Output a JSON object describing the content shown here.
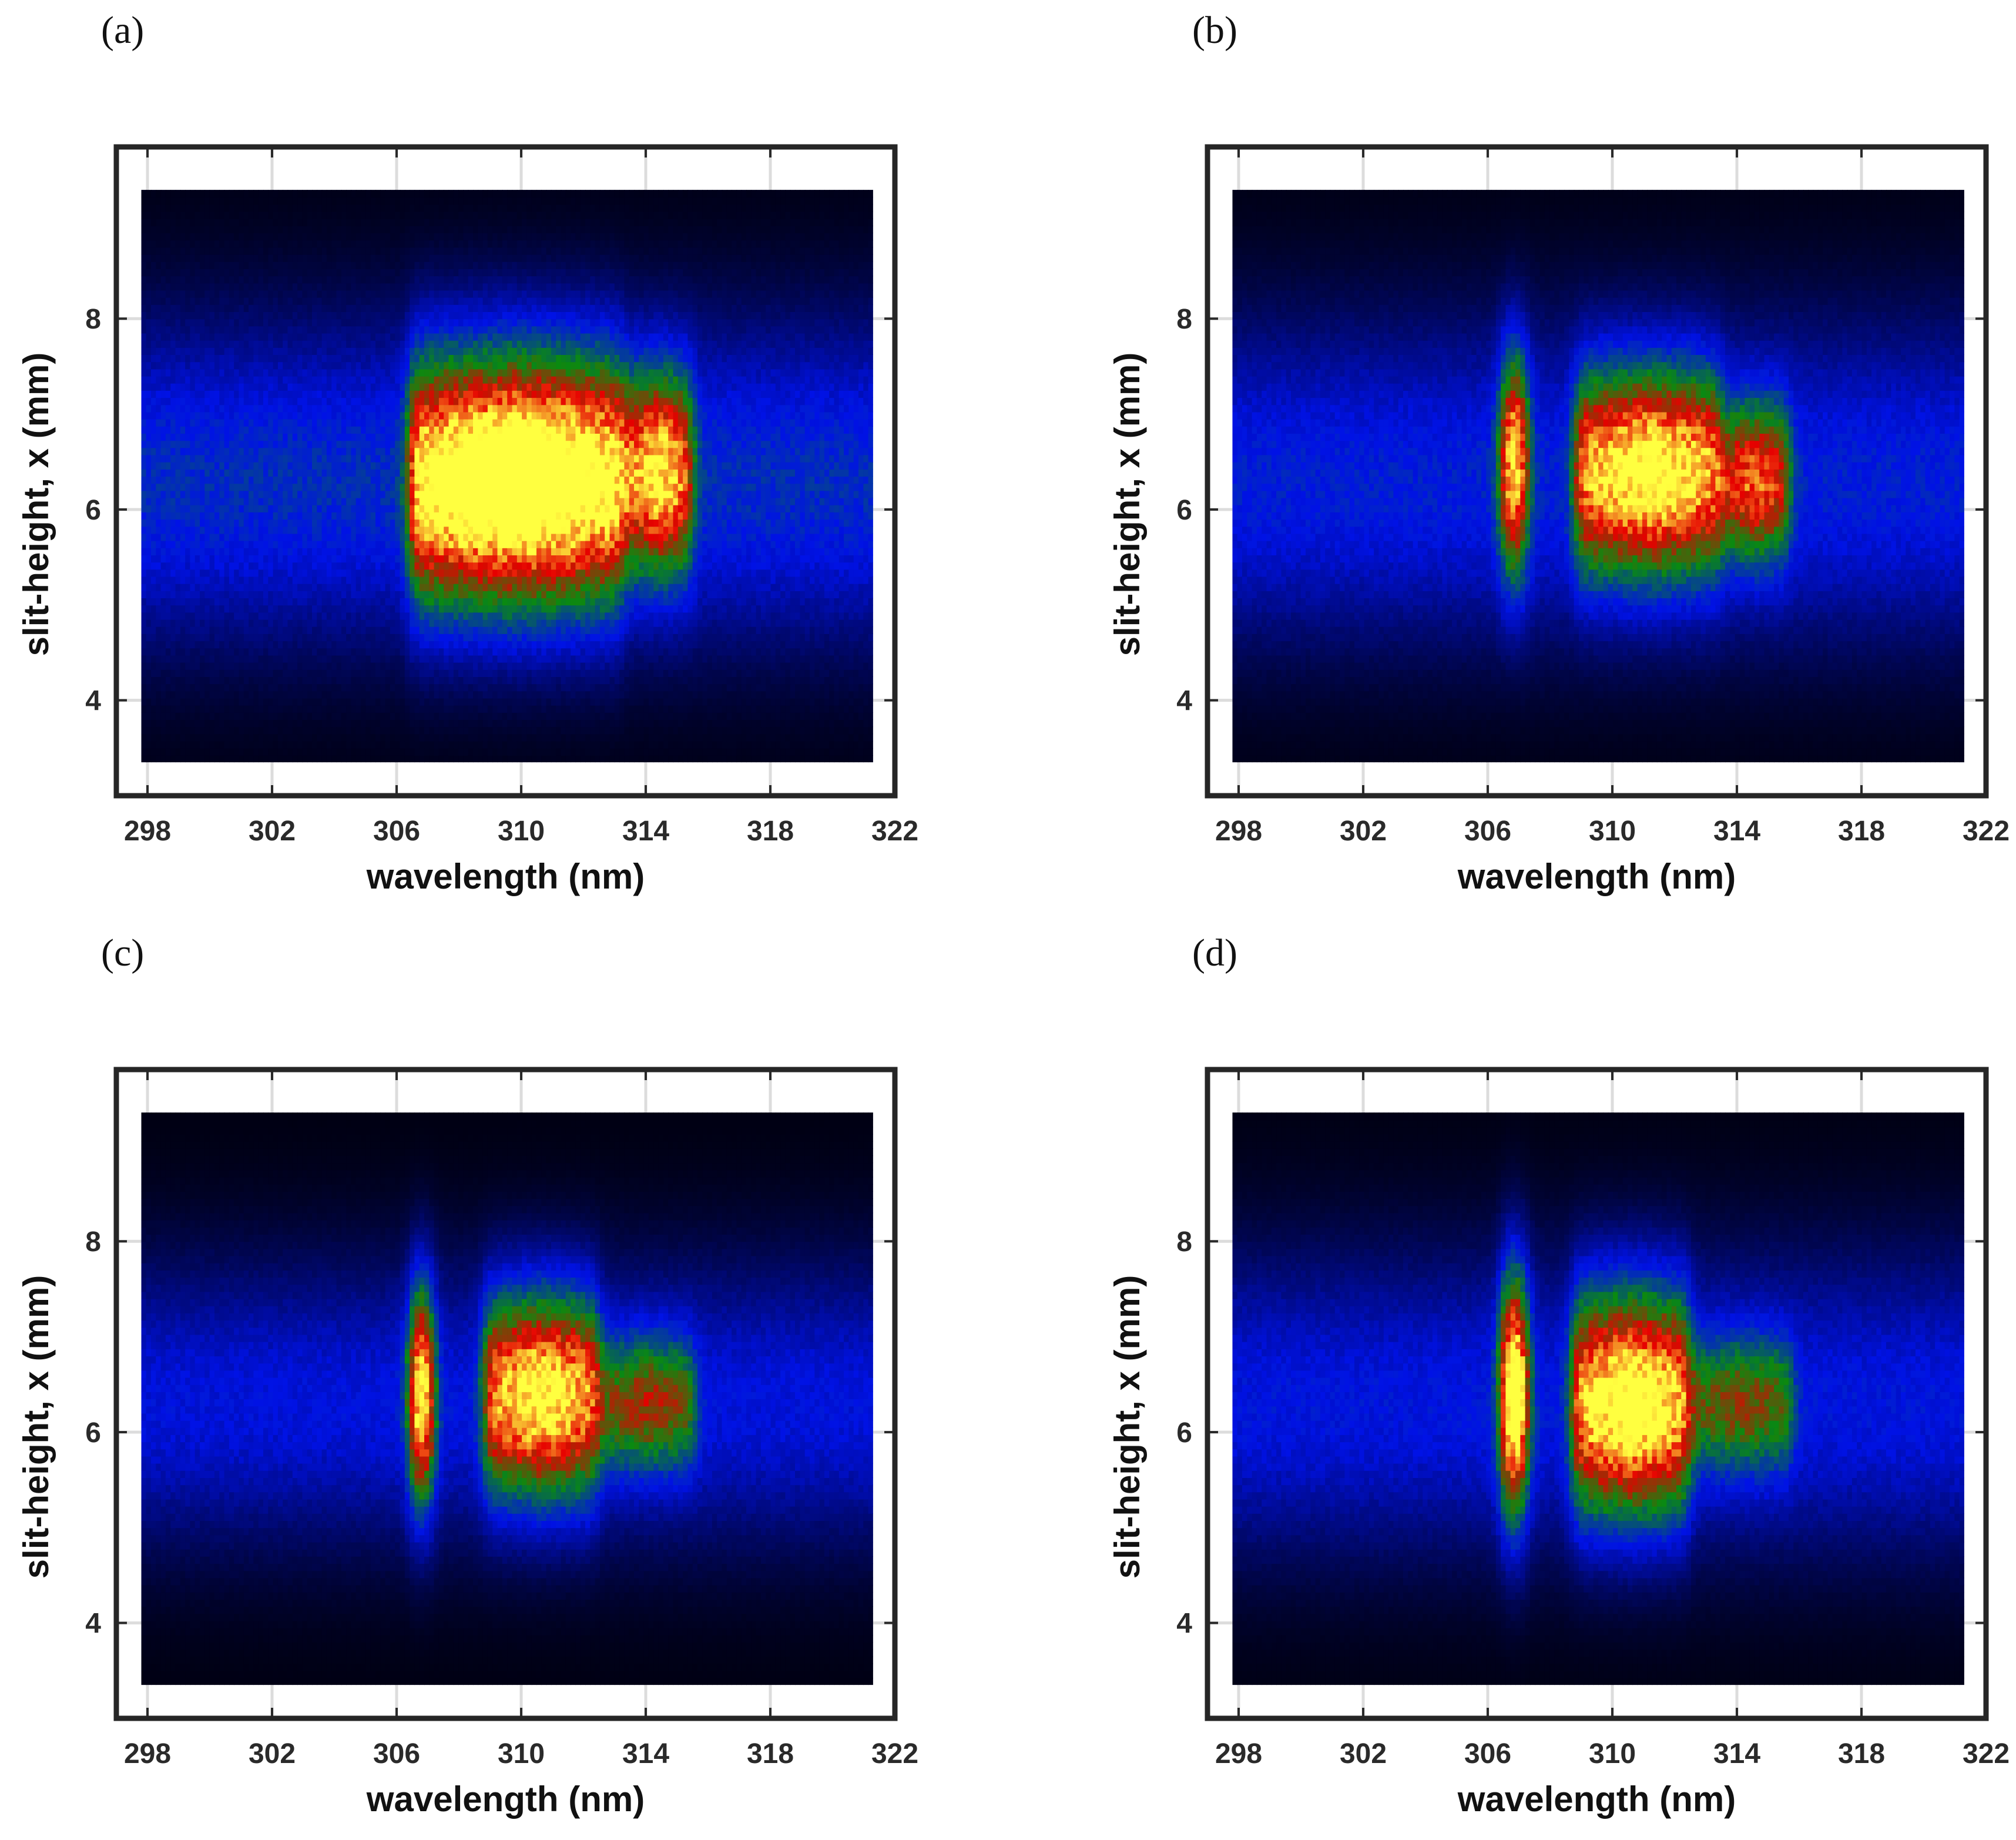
{
  "chart_data": [
    {
      "panel": "(a)",
      "type": "heatmap",
      "xlabel": "wavelength (nm)",
      "ylabel": "slit-height, x (mm)",
      "xlim": [
        297,
        322
      ],
      "ylim": [
        3,
        9.8
      ],
      "image_extent": {
        "x": [
          297.8,
          321.3
        ],
        "y": [
          3.35,
          9.35
        ]
      },
      "xticks": [
        298,
        302,
        306,
        310,
        314,
        318,
        322
      ],
      "yticks": [
        4,
        6,
        8
      ],
      "grid": true,
      "colormap": [
        "#000010",
        "#0012e6",
        "#0a8a10",
        "#e60000",
        "#ffff40"
      ],
      "features": [
        {
          "x0": 306.4,
          "x1": 313.3,
          "y_center": 6.3,
          "y_halfwidth": 1.1,
          "peak": 1.0
        },
        {
          "x0": 313.3,
          "x1": 315.5,
          "y_center": 6.4,
          "y_halfwidth": 0.9,
          "peak": 0.75
        }
      ],
      "background_center": 6.3,
      "background_halfwidth": 1.6,
      "background_level": 0.3
    },
    {
      "panel": "(b)",
      "type": "heatmap",
      "xlabel": "wavelength (nm)",
      "ylabel": "slit-height, x (mm)",
      "xlim": [
        297,
        322
      ],
      "ylim": [
        3,
        9.8
      ],
      "image_extent": {
        "x": [
          297.8,
          321.3
        ],
        "y": [
          3.35,
          9.35
        ]
      },
      "xticks": [
        298,
        302,
        306,
        310,
        314,
        318,
        322
      ],
      "yticks": [
        4,
        6,
        8
      ],
      "grid": true,
      "colormap": [
        "#000010",
        "#0012e6",
        "#0a8a10",
        "#e60000",
        "#ffff40"
      ],
      "features": [
        {
          "x0": 306.4,
          "x1": 307.3,
          "y_center": 6.5,
          "y_halfwidth": 1.0,
          "peak": 0.8
        },
        {
          "x0": 308.8,
          "x1": 313.5,
          "y_center": 6.4,
          "y_halfwidth": 0.9,
          "peak": 0.85
        },
        {
          "x0": 313.5,
          "x1": 315.7,
          "y_center": 6.3,
          "y_halfwidth": 0.7,
          "peak": 0.6
        }
      ],
      "background_center": 6.3,
      "background_halfwidth": 1.6,
      "background_level": 0.27
    },
    {
      "panel": "(c)",
      "type": "heatmap",
      "xlabel": "wavelength (nm)",
      "ylabel": "slit-height, x (mm)",
      "xlim": [
        297,
        322
      ],
      "ylim": [
        3,
        9.8
      ],
      "image_extent": {
        "x": [
          297.8,
          321.3
        ],
        "y": [
          3.35,
          9.35
        ]
      },
      "xticks": [
        298,
        302,
        306,
        310,
        314,
        318,
        322
      ],
      "yticks": [
        4,
        6,
        8
      ],
      "grid": true,
      "colormap": [
        "#000010",
        "#0012e6",
        "#0a8a10",
        "#e60000",
        "#ffff40"
      ],
      "features": [
        {
          "x0": 306.4,
          "x1": 307.2,
          "y_center": 6.4,
          "y_halfwidth": 1.0,
          "peak": 0.9
        },
        {
          "x0": 308.8,
          "x1": 312.5,
          "y_center": 6.4,
          "y_halfwidth": 0.9,
          "peak": 0.85
        },
        {
          "x0": 312.5,
          "x1": 315.6,
          "y_center": 6.3,
          "y_halfwidth": 0.6,
          "peak": 0.45
        }
      ],
      "background_center": 6.3,
      "background_halfwidth": 1.4,
      "background_level": 0.24
    },
    {
      "panel": "(d)",
      "type": "heatmap",
      "xlabel": "wavelength (nm)",
      "ylabel": "slit-height, x (mm)",
      "xlim": [
        297,
        322
      ],
      "ylim": [
        3,
        9.8
      ],
      "image_extent": {
        "x": [
          297.8,
          321.3
        ],
        "y": [
          3.35,
          9.35
        ]
      },
      "xticks": [
        298,
        302,
        306,
        310,
        314,
        318,
        322
      ],
      "yticks": [
        4,
        6,
        8
      ],
      "grid": true,
      "colormap": [
        "#000010",
        "#0012e6",
        "#0a8a10",
        "#e60000",
        "#ffff40"
      ],
      "features": [
        {
          "x0": 306.4,
          "x1": 307.3,
          "y_center": 6.4,
          "y_halfwidth": 1.1,
          "peak": 1.0
        },
        {
          "x0": 308.7,
          "x1": 312.5,
          "y_center": 6.3,
          "y_halfwidth": 1.0,
          "peak": 0.9
        },
        {
          "x0": 312.5,
          "x1": 315.8,
          "y_center": 6.3,
          "y_halfwidth": 0.6,
          "peak": 0.4
        }
      ],
      "background_center": 6.3,
      "background_halfwidth": 1.5,
      "background_level": 0.25
    }
  ]
}
